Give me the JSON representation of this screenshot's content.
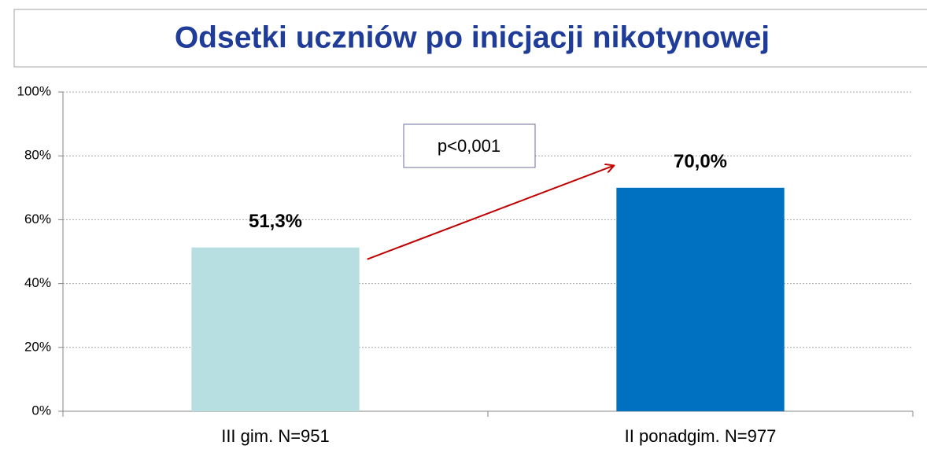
{
  "chart_data": {
    "type": "bar",
    "title": "Odsetki uczniów po inicjacji nikotynowej",
    "categories": [
      "III gim. N=951",
      "II ponadgim. N=977"
    ],
    "values": [
      51.3,
      70.0
    ],
    "value_labels": [
      "51,3%",
      "70,0%"
    ],
    "colors": [
      "#b7dfe2",
      "#0070c0"
    ],
    "ylim": [
      0,
      100
    ],
    "yticks": [
      {
        "value": 0,
        "label": "0%"
      },
      {
        "value": 20,
        "label": "20%"
      },
      {
        "value": 40,
        "label": "40%"
      },
      {
        "value": 60,
        "label": "60%"
      },
      {
        "value": 80,
        "label": "80%"
      },
      {
        "value": 100,
        "label": "100%"
      }
    ],
    "grid": true,
    "annotation": "p<0,001"
  }
}
